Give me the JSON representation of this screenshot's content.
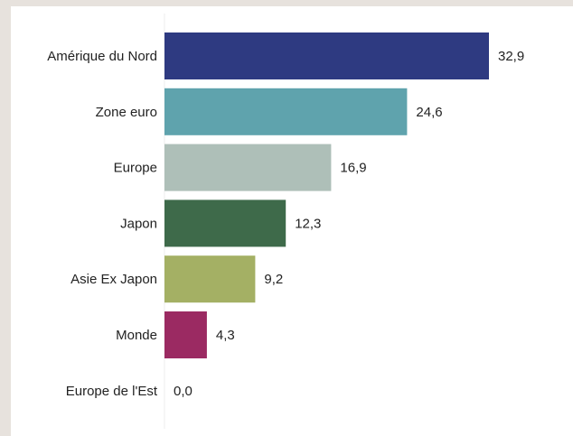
{
  "chart_data": {
    "type": "bar",
    "orientation": "horizontal",
    "categories": [
      "Amérique du Nord",
      "Zone euro",
      "Europe",
      "Japon",
      "Asie Ex Japon",
      "Monde",
      "Europe de l'Est"
    ],
    "values": [
      32.9,
      24.6,
      16.9,
      12.3,
      9.2,
      4.3,
      0.0
    ],
    "value_labels": [
      "32,9",
      "24,6",
      "16,9",
      "12,3",
      "9,2",
      "4,3",
      "0,0"
    ],
    "colors": [
      "#2e3a81",
      "#5fa3ad",
      "#aebfb8",
      "#3e6a4a",
      "#a4b064",
      "#9b2a62",
      "#9b2a62"
    ],
    "title": "",
    "xlabel": "",
    "ylabel": "",
    "xlim": [
      0,
      32.9
    ],
    "grid": false,
    "legend": "none"
  }
}
